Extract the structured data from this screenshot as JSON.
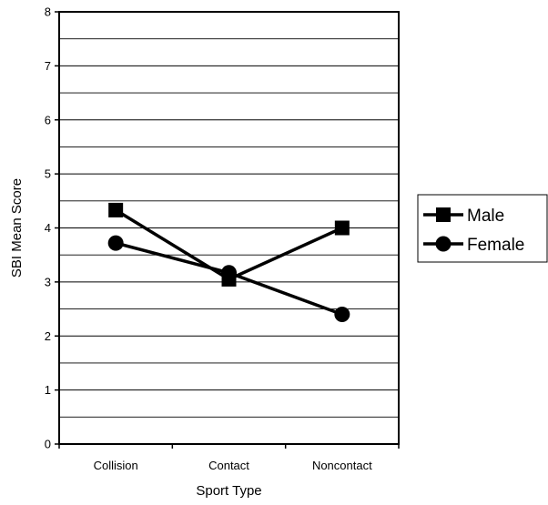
{
  "chart_data": {
    "type": "line",
    "title": "",
    "xlabel": "Sport Type",
    "ylabel": "SBI Mean Score",
    "categories": [
      "Collision",
      "Contact",
      "Noncontact"
    ],
    "ylim": [
      0,
      8
    ],
    "yticks": [
      0,
      1,
      2,
      3,
      4,
      5,
      6,
      7,
      8
    ],
    "ytick_labels": [
      "0",
      "1",
      "2",
      "3",
      "4",
      "5",
      "6",
      "7",
      "8"
    ],
    "grid_step": 0.5,
    "grid": true,
    "legend_position": "right",
    "series": [
      {
        "name": "Male",
        "marker": "square",
        "values": [
          4.33,
          3.05,
          4.0
        ]
      },
      {
        "name": "Female",
        "marker": "circle",
        "values": [
          3.72,
          3.17,
          2.4
        ]
      }
    ],
    "colors": {
      "line": "#000000",
      "grid": "#000000",
      "background": "#ffffff"
    }
  }
}
